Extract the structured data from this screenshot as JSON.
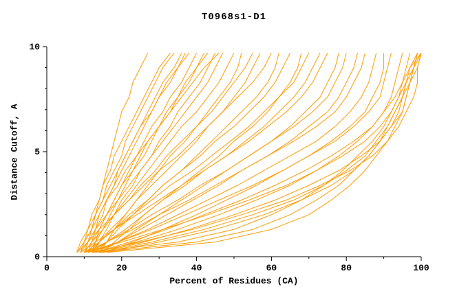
{
  "chart_data": {
    "type": "line",
    "title": "T0968s1-D1",
    "xlabel": "Percent of Residues (CA)",
    "ylabel": "Distance Cutoff, A",
    "xlim": [
      0,
      100
    ],
    "ylim": [
      0,
      10
    ],
    "x_ticks": [
      0,
      20,
      40,
      60,
      80,
      100
    ],
    "x_minor_ticks": [
      10,
      30,
      50,
      70,
      90
    ],
    "y_ticks": [
      0,
      5,
      10
    ],
    "y_minor_ticks": [
      1,
      2,
      3,
      4,
      6,
      7,
      8,
      9
    ],
    "line_color": "#ff9a00",
    "axis_color": "#000000",
    "legend": "none",
    "grid": "off",
    "y_values": [
      0.2,
      0.7,
      1.3,
      2.0,
      2.7,
      3.4,
      4.1,
      4.8,
      5.5,
      6.2,
      6.9,
      7.6,
      8.3,
      9.0,
      9.7
    ],
    "series_x": [
      [
        10,
        11,
        12,
        13,
        14,
        15,
        16,
        17,
        18,
        19,
        20,
        22,
        23,
        25,
        27
      ],
      [
        9,
        10,
        11,
        12,
        14,
        15,
        17,
        18,
        20,
        22,
        24,
        26,
        28,
        30,
        33
      ],
      [
        11,
        12,
        13,
        15,
        16,
        18,
        19,
        21,
        23,
        25,
        27,
        29,
        31,
        34,
        36
      ],
      [
        8,
        9,
        11,
        13,
        15,
        17,
        19,
        21,
        23,
        25,
        28,
        30,
        33,
        35,
        38
      ],
      [
        12,
        13,
        14,
        16,
        18,
        20,
        22,
        24,
        26,
        28,
        31,
        33,
        36,
        38,
        40
      ],
      [
        10,
        12,
        14,
        16,
        18,
        20,
        23,
        25,
        27,
        30,
        32,
        35,
        37,
        40,
        42
      ],
      [
        13,
        14,
        16,
        18,
        20,
        23,
        25,
        28,
        30,
        33,
        35,
        38,
        41,
        43,
        45
      ],
      [
        9,
        11,
        13,
        16,
        19,
        22,
        25,
        28,
        31,
        34,
        37,
        40,
        43,
        45,
        47
      ],
      [
        11,
        13,
        15,
        18,
        21,
        24,
        27,
        30,
        33,
        36,
        40,
        43,
        46,
        48,
        50
      ],
      [
        14,
        16,
        18,
        21,
        24,
        27,
        30,
        33,
        37,
        40,
        43,
        46,
        49,
        51,
        52
      ],
      [
        10,
        12,
        15,
        18,
        22,
        25,
        29,
        32,
        36,
        40,
        44,
        47,
        50,
        53,
        55
      ],
      [
        12,
        14,
        17,
        21,
        24,
        28,
        32,
        36,
        40,
        43,
        47,
        50,
        53,
        55,
        57
      ],
      [
        8,
        11,
        14,
        18,
        22,
        26,
        30,
        35,
        39,
        43,
        47,
        51,
        55,
        58,
        60
      ],
      [
        13,
        16,
        19,
        23,
        27,
        31,
        36,
        40,
        44,
        48,
        52,
        56,
        59,
        61,
        62
      ],
      [
        11,
        14,
        18,
        22,
        27,
        31,
        36,
        41,
        45,
        50,
        54,
        58,
        61,
        63,
        65
      ],
      [
        15,
        18,
        22,
        26,
        31,
        36,
        41,
        46,
        50,
        55,
        59,
        62,
        65,
        67,
        68
      ],
      [
        10,
        14,
        18,
        23,
        28,
        33,
        39,
        44,
        49,
        54,
        58,
        62,
        66,
        68,
        70
      ],
      [
        12,
        16,
        21,
        26,
        31,
        37,
        42,
        48,
        53,
        58,
        62,
        66,
        69,
        71,
        73
      ],
      [
        9,
        13,
        18,
        24,
        30,
        36,
        42,
        48,
        54,
        59,
        64,
        68,
        71,
        73,
        75
      ],
      [
        14,
        19,
        24,
        30,
        36,
        42,
        48,
        54,
        60,
        65,
        69,
        73,
        75,
        77,
        78
      ],
      [
        11,
        16,
        22,
        28,
        35,
        41,
        48,
        54,
        60,
        66,
        71,
        75,
        77,
        79,
        80
      ],
      [
        13,
        19,
        25,
        32,
        39,
        46,
        52,
        59,
        65,
        70,
        75,
        78,
        80,
        82,
        83
      ],
      [
        10,
        16,
        23,
        30,
        38,
        45,
        52,
        59,
        66,
        72,
        77,
        80,
        82,
        84,
        85
      ],
      [
        12,
        19,
        27,
        35,
        43,
        51,
        58,
        65,
        72,
        77,
        81,
        84,
        86,
        87,
        88
      ],
      [
        15,
        23,
        31,
        40,
        48,
        56,
        63,
        70,
        76,
        81,
        85,
        87,
        89,
        90,
        90
      ],
      [
        11,
        19,
        28,
        37,
        46,
        55,
        63,
        70,
        77,
        82,
        86,
        89,
        90,
        91,
        92
      ],
      [
        13,
        22,
        32,
        42,
        52,
        61,
        69,
        76,
        82,
        87,
        90,
        92,
        93,
        94,
        95
      ],
      [
        10,
        20,
        31,
        43,
        54,
        64,
        72,
        79,
        85,
        89,
        92,
        94,
        95,
        96,
        97
      ],
      [
        14,
        26,
        38,
        50,
        61,
        70,
        78,
        84,
        89,
        92,
        95,
        96,
        97,
        98,
        99
      ],
      [
        12,
        25,
        39,
        52,
        64,
        73,
        81,
        87,
        91,
        94,
        96,
        98,
        99,
        99,
        100
      ],
      [
        16,
        30,
        45,
        58,
        68,
        76,
        82,
        86,
        89,
        92,
        94,
        95,
        97,
        98,
        100
      ],
      [
        15,
        28,
        42,
        55,
        66,
        74,
        80,
        85,
        88,
        91,
        93,
        95,
        96,
        98,
        99
      ],
      [
        13,
        24,
        35,
        46,
        56,
        65,
        72,
        78,
        83,
        87,
        90,
        93,
        95,
        97,
        100
      ],
      [
        14,
        40,
        55,
        65,
        72,
        78,
        82,
        86,
        89,
        91,
        93,
        95,
        96,
        98,
        100
      ],
      [
        12,
        35,
        50,
        60,
        68,
        74,
        79,
        83,
        87,
        90,
        92,
        94,
        96,
        97,
        99
      ],
      [
        16,
        45,
        60,
        70,
        76,
        81,
        85,
        88,
        91,
        93,
        95,
        96,
        97,
        99,
        100
      ],
      [
        9,
        10,
        12,
        13,
        15,
        16,
        18,
        20,
        21,
        23,
        25,
        27,
        29,
        31,
        34
      ],
      [
        10,
        11,
        13,
        14,
        16,
        18,
        20,
        22,
        24,
        26,
        28,
        30,
        32,
        35,
        37
      ],
      [
        12,
        13,
        15,
        17,
        19,
        21,
        23,
        26,
        28,
        30,
        33,
        35,
        38,
        40,
        43
      ],
      [
        8,
        10,
        12,
        14,
        16,
        19,
        21,
        24,
        27,
        30,
        33,
        36,
        39,
        42,
        46
      ]
    ]
  }
}
